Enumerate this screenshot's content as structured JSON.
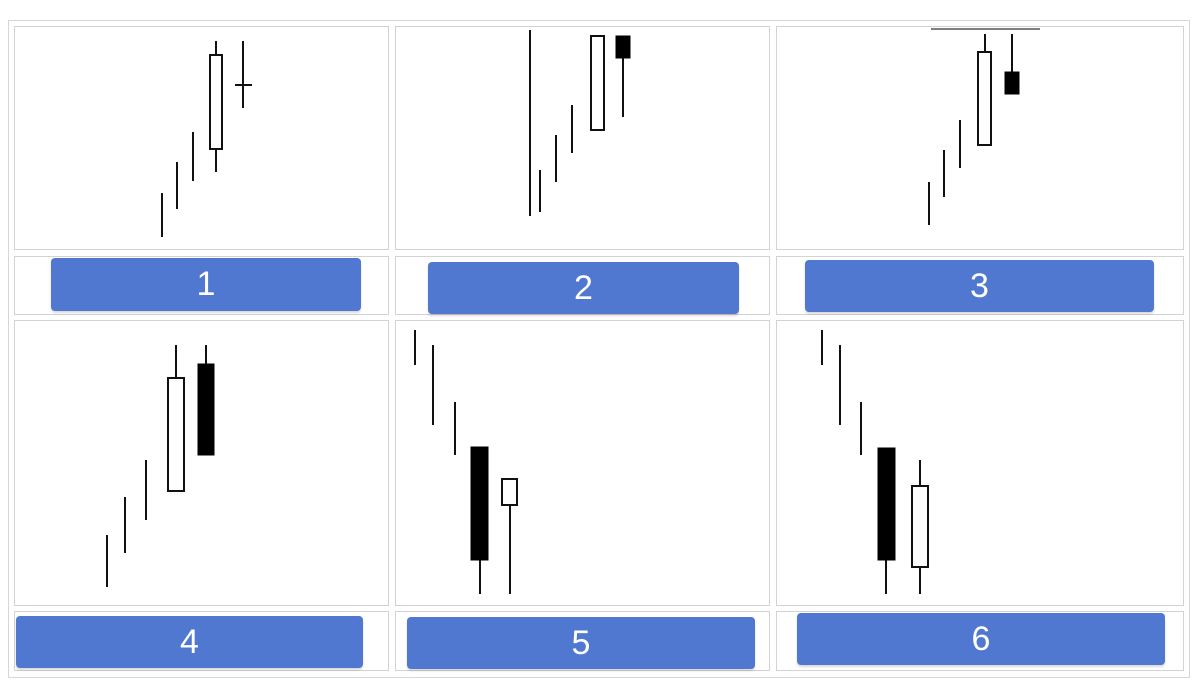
{
  "options": [
    {
      "label": "1"
    },
    {
      "label": "2"
    },
    {
      "label": "3"
    },
    {
      "label": "4"
    },
    {
      "label": "5"
    },
    {
      "label": "6"
    }
  ],
  "colors": {
    "button": "#5078d0",
    "button_text": "#ffffff",
    "candle": "#000000"
  }
}
